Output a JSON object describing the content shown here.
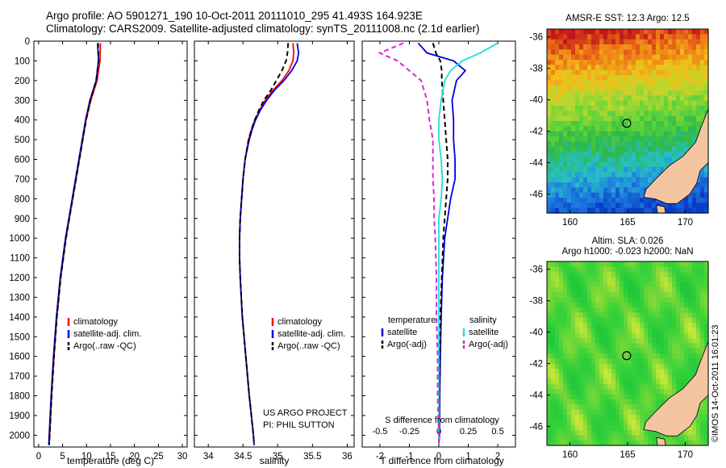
{
  "header": {
    "line1": "Argo profile: AO 5901271_190 10-Oct-2011 20111010_295 41.493S 164.923E",
    "line2": "Climatology: CARS2009. Satellite-adjusted climatology: synTS_20111008.nc (2.1d earlier)"
  },
  "footer": {
    "project": "US ARGO PROJECT",
    "pi": "PI: PHIL SUTTON",
    "watermark": "©IMOS 14-Oct-2011 16:01:23"
  },
  "colors": {
    "climatology": "#ff0000",
    "satellite": "#0000dd",
    "argo": "#000000",
    "sal_satellite": "#22dddd",
    "sal_argo": "#dd22dd",
    "land": "#f5c4a0"
  },
  "chart_data": [
    {
      "type": "line",
      "id": "temperature",
      "xlabel": "temperature (deg C)",
      "ylabel": "",
      "xlim": [
        -1,
        31
      ],
      "ylim": [
        2060,
        0
      ],
      "xticks": [
        0,
        5,
        10,
        15,
        20,
        25,
        30
      ],
      "xtick_labels": [
        "0",
        "5",
        "10",
        "15",
        "20",
        "25",
        "30"
      ],
      "yticks": [
        0,
        100,
        200,
        300,
        400,
        500,
        600,
        700,
        800,
        900,
        1000,
        1100,
        1200,
        1300,
        1400,
        1500,
        1600,
        1700,
        1800,
        1900,
        2000
      ],
      "ytick_labels": [
        "0",
        "100",
        "200",
        "300",
        "400",
        "500",
        "600",
        "700",
        "800",
        "900",
        "1000",
        "1100",
        "1200",
        "1300",
        "1400",
        "1500",
        "1600",
        "1700",
        "1800",
        "1900",
        "2000"
      ],
      "legend": [
        "climatology",
        "satellite-adj. clim.",
        "Argo(..raw -QC)"
      ],
      "legend_position": "lower-center",
      "depth": [
        10,
        100,
        200,
        300,
        400,
        500,
        600,
        700,
        800,
        900,
        1000,
        1200,
        1400,
        1600,
        1800,
        2000,
        2050
      ],
      "series": [
        {
          "name": "climatology",
          "key": "climatology",
          "values": [
            12.9,
            12.8,
            12.2,
            10.9,
            9.9,
            9.2,
            8.5,
            7.8,
            7.1,
            6.4,
            5.7,
            4.6,
            3.8,
            3.2,
            2.7,
            2.3,
            2.2
          ]
        },
        {
          "name": "satellite-adj. clim.",
          "key": "satellite",
          "values": [
            12.3,
            12.5,
            12.0,
            10.7,
            9.8,
            9.1,
            8.4,
            7.7,
            7.0,
            6.3,
            5.6,
            4.5,
            3.7,
            3.1,
            2.6,
            2.2,
            2.1
          ]
        },
        {
          "name": "Argo(..raw -QC)",
          "key": "argo",
          "values": [
            12.4,
            12.5,
            12.0,
            10.8,
            9.9,
            9.2,
            8.5,
            7.8,
            7.1,
            6.4,
            5.7,
            4.6,
            3.8,
            3.2,
            2.7,
            2.3,
            2.2
          ],
          "dash": true
        }
      ]
    },
    {
      "type": "line",
      "id": "salinity",
      "xlabel": "salinity",
      "xlim": [
        33.8,
        36.1
      ],
      "ylim": [
        2060,
        0
      ],
      "xticks": [
        34,
        34.5,
        35,
        35.5,
        36
      ],
      "xtick_labels": [
        "34",
        "34.5",
        "35",
        "35.5",
        "36"
      ],
      "legend": [
        "climatology",
        "satellite-adj. clim.",
        "Argo(..raw -QC)"
      ],
      "legend_position": "lower-center",
      "depth": [
        10,
        60,
        100,
        150,
        200,
        250,
        300,
        350,
        400,
        450,
        500,
        600,
        700,
        800,
        900,
        1000,
        1100,
        1200,
        1400,
        1600,
        1800,
        2000,
        2050
      ],
      "series": [
        {
          "name": "climatology",
          "key": "climatology",
          "values": [
            35.22,
            35.23,
            35.22,
            35.16,
            35.06,
            34.93,
            34.82,
            34.74,
            34.67,
            34.62,
            34.58,
            34.53,
            34.5,
            34.48,
            34.46,
            34.45,
            34.45,
            34.46,
            34.49,
            34.54,
            34.59,
            34.65,
            34.66
          ]
        },
        {
          "name": "satellite-adj. clim.",
          "key": "satellite",
          "values": [
            35.28,
            35.3,
            35.28,
            35.2,
            35.09,
            34.95,
            34.84,
            34.75,
            34.68,
            34.63,
            34.59,
            34.53,
            34.5,
            34.48,
            34.46,
            34.45,
            34.45,
            34.46,
            34.49,
            34.54,
            34.59,
            34.65,
            34.66
          ]
        },
        {
          "name": "Argo(..raw -QC)",
          "key": "argo",
          "values": [
            35.15,
            35.14,
            35.12,
            35.06,
            34.98,
            34.9,
            34.8,
            34.73,
            34.67,
            34.62,
            34.58,
            34.53,
            34.5,
            34.48,
            34.46,
            34.45,
            34.45,
            34.46,
            34.49,
            34.54,
            34.59,
            34.65,
            34.66
          ],
          "dash": true
        }
      ]
    },
    {
      "type": "line",
      "id": "differences",
      "xlabel": "T difference from climatology",
      "xlim": [
        -2.6,
        2.6
      ],
      "ylim": [
        2060,
        0
      ],
      "xticks": [
        -2,
        -1,
        0,
        1,
        2
      ],
      "xtick_labels": [
        "-2",
        "-1",
        "0",
        "1",
        "2"
      ],
      "top_axis_label": "S difference from climatology",
      "top_ticks": [
        -0.5,
        -0.25,
        0,
        0.25,
        0.5
      ],
      "top_tick_labels": [
        "-0.5",
        "-0.25",
        "0",
        "0.25",
        "0.5"
      ],
      "legend_groups": [
        {
          "title": "temperature",
          "items": [
            "satellite",
            "Argo(-adj)"
          ]
        },
        {
          "title": "salinity",
          "items": [
            "satellite",
            "Argo(-adj)"
          ]
        }
      ],
      "depth": [
        10,
        60,
        100,
        150,
        200,
        300,
        400,
        500,
        600,
        700,
        800,
        900,
        1000,
        1200,
        1400,
        1600,
        1800,
        2000,
        2050
      ],
      "series": [
        {
          "name": "temperature satellite",
          "key": "satellite",
          "values": [
            -0.7,
            -0.4,
            0.5,
            0.9,
            0.6,
            0.45,
            0.5,
            0.5,
            0.55,
            0.55,
            0.4,
            0.3,
            0.2,
            0.12,
            0.08,
            0.05,
            0.03,
            0.02,
            0.0
          ]
        },
        {
          "name": "temperature Argo(-adj)",
          "key": "argo",
          "values": [
            -0.2,
            -0.1,
            0.05,
            0.1,
            0.1,
            0.15,
            0.2,
            0.25,
            0.3,
            0.3,
            0.25,
            0.2,
            0.15,
            0.1,
            0.05,
            0.04,
            0.02,
            0.01,
            0.0
          ],
          "dash": true
        },
        {
          "name": "salinity satellite",
          "key": "sal_satellite",
          "values": [
            0.5,
            0.35,
            0.2,
            0.1,
            0.05,
            0.02,
            0.0,
            0.0,
            0.02,
            0.03,
            0.02,
            0.0,
            0.0,
            0.0,
            0.0,
            0.0,
            0.0,
            0.0,
            0.0
          ]
        },
        {
          "name": "salinity Argo(-adj)",
          "key": "sal_argo",
          "values": [
            -0.3,
            -0.5,
            -0.35,
            -0.25,
            -0.15,
            -0.1,
            -0.08,
            -0.05,
            -0.05,
            -0.05,
            -0.04,
            -0.04,
            -0.03,
            -0.02,
            -0.02,
            -0.01,
            -0.01,
            0.0,
            0.0
          ],
          "dash": true
        }
      ]
    },
    {
      "type": "heatmap",
      "id": "sst-map",
      "title": "AMSR-E SST: 12.3 Argo: 12.5",
      "xlim": [
        158,
        172
      ],
      "ylim": [
        -47.2,
        -35.5
      ],
      "xticks": [
        160,
        165,
        170
      ],
      "xtick_labels": [
        "160",
        "165",
        "170"
      ],
      "yticks": [
        -36,
        -38,
        -40,
        -42,
        -44,
        -46
      ],
      "ytick_labels": [
        "-36",
        "-38",
        "-40",
        "-42",
        "-44",
        "-46"
      ],
      "marker": {
        "lon": 164.923,
        "lat": -41.493
      },
      "colormap": [
        "#0a3cc8",
        "#1f7ee0",
        "#27c0c8",
        "#2cb84a",
        "#5cd23a",
        "#b8d830",
        "#f0c018",
        "#f07818",
        "#c01818"
      ],
      "value_range": [
        10.5,
        16.5
      ]
    },
    {
      "type": "heatmap",
      "id": "sla-map",
      "title": "Altim. SLA: 0.026",
      "subtitle": "Argo h1000: -0.023 h2000: NaN",
      "xlim": [
        158,
        172
      ],
      "ylim": [
        -47.2,
        -35.5
      ],
      "xticks": [
        160,
        165,
        170
      ],
      "xtick_labels": [
        "160",
        "165",
        "170"
      ],
      "yticks": [
        -36,
        -38,
        -40,
        -42,
        -44,
        -46
      ],
      "ytick_labels": [
        "-36",
        "-38",
        "-40",
        "-42",
        "-44",
        "-46"
      ],
      "marker": {
        "lon": 164.923,
        "lat": -41.493
      },
      "colormap": [
        "#22c83a",
        "#3ad23a",
        "#7ad838",
        "#c8e838",
        "#f0e830"
      ],
      "value_range": [
        -0.1,
        0.2
      ]
    }
  ]
}
